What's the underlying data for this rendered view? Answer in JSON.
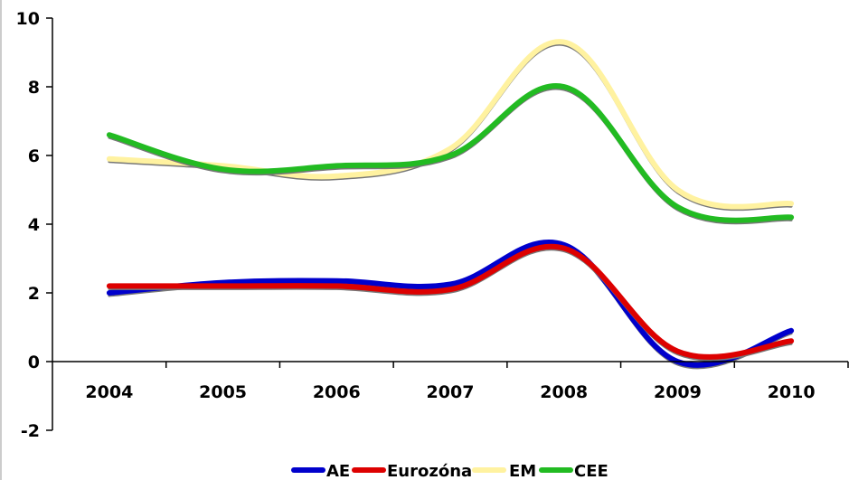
{
  "chart_data": {
    "type": "line",
    "title": "",
    "xlabel": "",
    "ylabel": "",
    "categories": [
      "2004",
      "2005",
      "2006",
      "2007",
      "2008",
      "2009",
      "2010"
    ],
    "ylim": [
      -2,
      10
    ],
    "yticks": [
      -2,
      0,
      2,
      4,
      6,
      8,
      10
    ],
    "y_tick_labels": [
      "-2",
      "0",
      "2",
      "4",
      "6",
      "8",
      "10"
    ],
    "grid": false,
    "legend_position": "bottom",
    "series": [
      {
        "name": "AE",
        "color": "#0000cc",
        "values": [
          2.0,
          2.3,
          2.35,
          2.25,
          3.4,
          0.0,
          0.9
        ]
      },
      {
        "name": "Eurozóna",
        "color": "#dd0000",
        "values": [
          2.2,
          2.2,
          2.2,
          2.1,
          3.3,
          0.3,
          0.6
        ]
      },
      {
        "name": "EM",
        "color": "#fff2a0",
        "values": [
          5.9,
          5.7,
          5.4,
          6.2,
          9.3,
          5.0,
          4.6
        ]
      },
      {
        "name": "CEE",
        "color": "#22bb22",
        "values": [
          6.6,
          5.6,
          5.7,
          6.0,
          8.0,
          4.5,
          4.2
        ]
      }
    ]
  }
}
